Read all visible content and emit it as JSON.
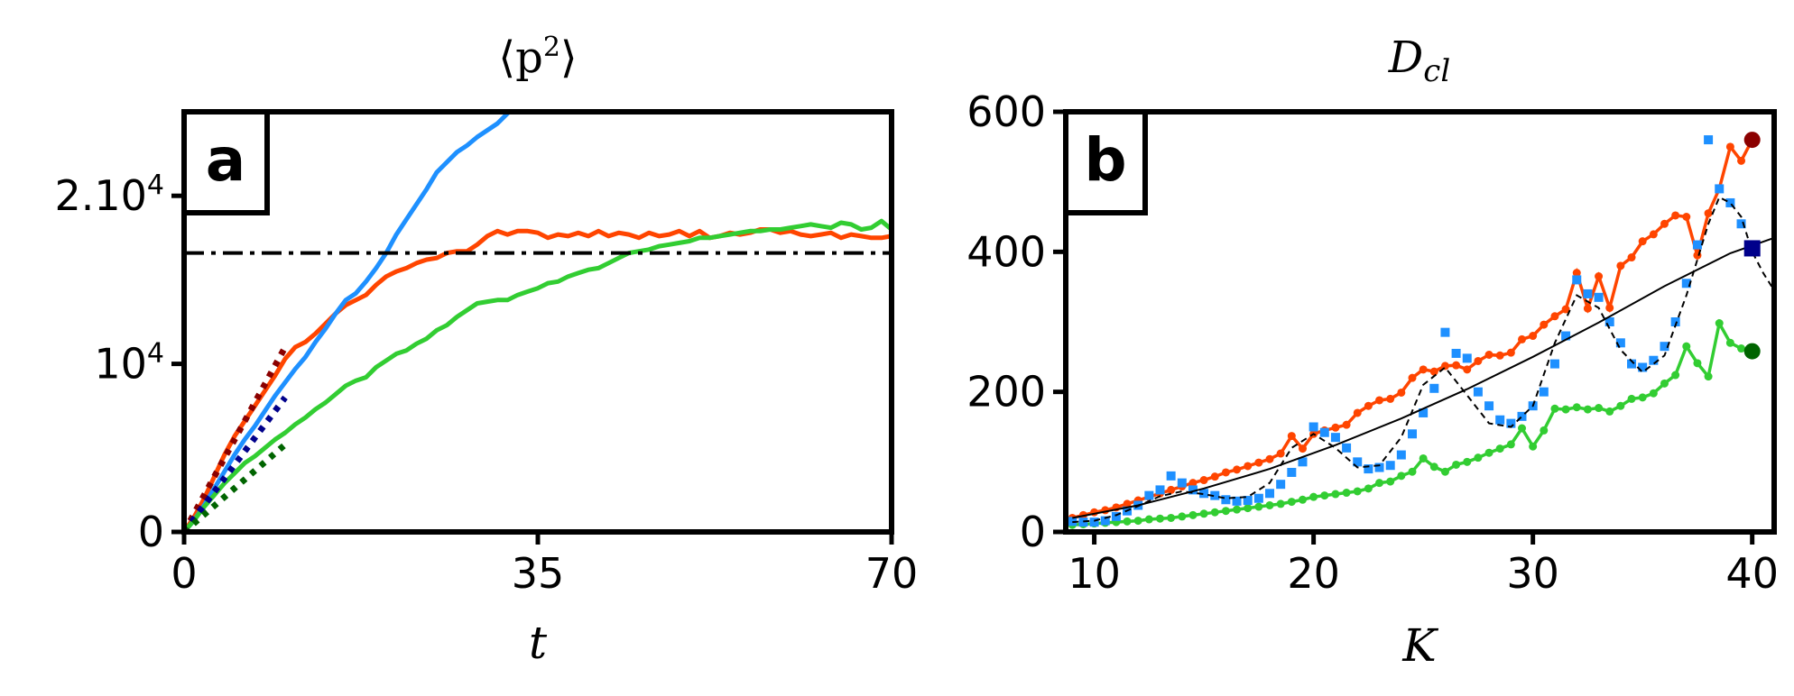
{
  "colors": {
    "red": "#ff4500",
    "blue": "#1e90ff",
    "green": "#32cd32",
    "dark_red": "#8b0000",
    "navy": "#00008b",
    "dark_green": "#006400",
    "black": "#000000"
  },
  "chart_data": [
    {
      "type": "line",
      "panel_label": "a",
      "title_main": "⟨p",
      "title_sup": "2",
      "title_end": "⟩",
      "xlabel": "t",
      "ylabel": "",
      "xlim": [
        0,
        70
      ],
      "ylim": [
        0,
        25000
      ],
      "xticks": [
        0,
        35,
        70
      ],
      "xtick_labels": [
        "0",
        "35",
        "70"
      ],
      "yticks": [
        0,
        10000,
        20000
      ],
      "ytick_labels": [
        {
          "base": "0",
          "sup": ""
        },
        {
          "base": "10",
          "sup": "4"
        },
        {
          "base": "2.10",
          "sup": "4"
        }
      ],
      "grid": false,
      "series": [
        {
          "color": "red",
          "style": "solid",
          "x": [
            0,
            1,
            2,
            3,
            4,
            5,
            6,
            7,
            8,
            9,
            10,
            11,
            12,
            13,
            14,
            15,
            16,
            17,
            18,
            19,
            20,
            21,
            22,
            23,
            24,
            25,
            26,
            27,
            28,
            29,
            30,
            31,
            32,
            33,
            34,
            35,
            36,
            37,
            38,
            39,
            40,
            41,
            42,
            43,
            44,
            45,
            46,
            47,
            48,
            49,
            50,
            51,
            52,
            53,
            54,
            55,
            56,
            57,
            58,
            59,
            60,
            61,
            62,
            63,
            64,
            65,
            66,
            67,
            68,
            69,
            70
          ],
          "y": [
            0,
            900,
            2000,
            3300,
            4600,
            5700,
            6600,
            7500,
            8400,
            9300,
            10300,
            11000,
            11300,
            11800,
            12400,
            13000,
            13500,
            13800,
            14100,
            14700,
            15200,
            15500,
            15700,
            16000,
            16200,
            16300,
            16600,
            16700,
            16700,
            17100,
            17600,
            17900,
            17700,
            17900,
            17900,
            17800,
            17500,
            17700,
            17600,
            17800,
            17600,
            17900,
            17600,
            17800,
            17700,
            17500,
            17800,
            17600,
            17700,
            17900,
            17600,
            17900,
            17500,
            17600,
            17800,
            17700,
            17800,
            18000,
            18000,
            17800,
            17900,
            17700,
            17600,
            17700,
            17800,
            17500,
            17700,
            17600,
            17500,
            17500,
            17600
          ]
        },
        {
          "color": "blue",
          "style": "solid",
          "x": [
            0,
            1,
            2,
            3,
            4,
            5,
            6,
            7,
            8,
            9,
            10,
            11,
            12,
            13,
            14,
            15,
            16,
            17,
            18,
            19,
            20,
            21,
            22,
            23,
            24,
            25,
            26,
            27,
            28,
            29,
            30,
            31,
            32,
            33
          ],
          "y": [
            0,
            700,
            1600,
            2600,
            3600,
            4600,
            5500,
            6300,
            7200,
            8100,
            8900,
            9700,
            10400,
            11300,
            12100,
            13000,
            13800,
            14200,
            14900,
            15700,
            16600,
            17700,
            18600,
            19500,
            20400,
            21400,
            22000,
            22600,
            23000,
            23500,
            23900,
            24300,
            24900,
            25600
          ]
        },
        {
          "color": "green",
          "style": "solid",
          "x": [
            0,
            1,
            2,
            3,
            4,
            5,
            6,
            7,
            8,
            9,
            10,
            11,
            12,
            13,
            14,
            15,
            16,
            17,
            18,
            19,
            20,
            21,
            22,
            23,
            24,
            25,
            26,
            27,
            28,
            29,
            30,
            31,
            32,
            33,
            34,
            35,
            36,
            37,
            38,
            39,
            40,
            41,
            42,
            43,
            44,
            45,
            46,
            47,
            48,
            49,
            50,
            51,
            52,
            53,
            54,
            55,
            56,
            57,
            58,
            59,
            60,
            61,
            62,
            63,
            64,
            65,
            66,
            67,
            68,
            69,
            70
          ],
          "y": [
            0,
            700,
            1500,
            2200,
            2900,
            3500,
            4100,
            4500,
            5000,
            5500,
            5900,
            6400,
            6800,
            7300,
            7700,
            8200,
            8700,
            9000,
            9200,
            9800,
            10200,
            10600,
            10800,
            11200,
            11500,
            12000,
            12300,
            12800,
            13200,
            13600,
            13700,
            13800,
            13800,
            14100,
            14300,
            14500,
            14800,
            14900,
            15200,
            15400,
            15600,
            15700,
            16000,
            16300,
            16600,
            16700,
            16800,
            17000,
            17100,
            17200,
            17300,
            17500,
            17500,
            17600,
            17700,
            17800,
            17900,
            17900,
            18000,
            18000,
            18100,
            18200,
            18300,
            18200,
            18100,
            18400,
            18300,
            18000,
            18100,
            18500,
            18000
          ]
        },
        {
          "color": "dark_red",
          "style": "dotted",
          "x": [
            0,
            10
          ],
          "y": [
            0,
            11000
          ]
        },
        {
          "color": "navy",
          "style": "dotted",
          "x": [
            0,
            10
          ],
          "y": [
            0,
            8000
          ]
        },
        {
          "color": "dark_green",
          "style": "dotted",
          "x": [
            0,
            10
          ],
          "y": [
            0,
            5200
          ]
        },
        {
          "color": "black",
          "style": "dashdot",
          "x": [
            0,
            70
          ],
          "y": [
            16600,
            16600
          ]
        }
      ]
    },
    {
      "type": "line",
      "panel_label": "b",
      "title_main": "D",
      "title_sub": "cl",
      "xlabel": "K",
      "ylabel": "",
      "xlim": [
        8.7,
        41
      ],
      "ylim": [
        0,
        600
      ],
      "xticks": [
        10,
        20,
        30,
        40
      ],
      "xtick_labels": [
        "10",
        "20",
        "30",
        "40"
      ],
      "yticks": [
        0,
        200,
        400,
        600
      ],
      "ytick_labels": [
        "0",
        "200",
        "400",
        "600"
      ],
      "grid": false,
      "series": [
        {
          "color": "red",
          "style": "line-dots",
          "x": [
            9,
            9.5,
            10,
            10.5,
            11,
            11.5,
            12,
            12.5,
            13,
            13.5,
            14,
            14.5,
            15,
            15.5,
            16,
            16.5,
            17,
            17.5,
            18,
            18.5,
            19,
            19.5,
            20,
            20.5,
            21,
            21.5,
            22,
            22.5,
            23,
            23.5,
            24,
            24.5,
            25,
            25.5,
            26,
            26.5,
            27,
            27.5,
            28,
            28.5,
            29,
            29.5,
            30,
            30.5,
            31,
            31.5,
            32,
            32.5,
            33,
            33.5,
            34,
            34.5,
            35,
            35.5,
            36,
            36.5,
            37,
            37.5,
            38,
            38.5,
            39,
            39.5,
            40
          ],
          "y": [
            20,
            24,
            28,
            31,
            35,
            40,
            45,
            50,
            55,
            60,
            65,
            70,
            74,
            79,
            85,
            89,
            94,
            99,
            104,
            112,
            137,
            119,
            140,
            145,
            149,
            153,
            170,
            180,
            188,
            190,
            199,
            220,
            232,
            229,
            237,
            238,
            232,
            244,
            253,
            252,
            256,
            275,
            280,
            296,
            308,
            318,
            370,
            319,
            365,
            320,
            380,
            392,
            415,
            425,
            440,
            452,
            450,
            395,
            455,
            490,
            550,
            530,
            560
          ]
        },
        {
          "color": "green",
          "style": "line-dots",
          "x": [
            9,
            9.5,
            10,
            10.5,
            11,
            11.5,
            12,
            12.5,
            13,
            13.5,
            14,
            14.5,
            15,
            15.5,
            16,
            16.5,
            17,
            17.5,
            18,
            18.5,
            19,
            19.5,
            20,
            20.5,
            21,
            21.5,
            22,
            22.5,
            23,
            23.5,
            24,
            24.5,
            25,
            25.5,
            26,
            26.5,
            27,
            27.5,
            28,
            28.5,
            29,
            29.5,
            30,
            30.5,
            31,
            31.5,
            32,
            32.5,
            33,
            33.5,
            34,
            34.5,
            35,
            35.5,
            36,
            36.5,
            37,
            37.5,
            38,
            38.5,
            39,
            39.5,
            40
          ],
          "y": [
            10,
            11,
            12,
            13,
            14,
            15,
            16,
            18,
            19,
            20,
            22,
            24,
            26,
            28,
            30,
            32,
            34,
            36,
            38,
            40,
            43,
            46,
            50,
            52,
            54,
            56,
            58,
            62,
            70,
            72,
            80,
            86,
            105,
            93,
            86,
            96,
            100,
            106,
            113,
            119,
            125,
            148,
            122,
            145,
            176,
            175,
            178,
            175,
            177,
            172,
            180,
            190,
            192,
            198,
            212,
            224,
            265,
            241,
            222,
            298,
            270,
            262,
            258
          ]
        },
        {
          "color": "blue",
          "style": "squares",
          "x": [
            9,
            9.5,
            10,
            10.5,
            11,
            11.5,
            12,
            12.5,
            13,
            13.5,
            14,
            14.5,
            15,
            15.5,
            16,
            16.5,
            17,
            17.5,
            18,
            18.5,
            19,
            19.5,
            20,
            20.5,
            21,
            21.5,
            22,
            22.5,
            23,
            23.5,
            24,
            24.5,
            25,
            25.5,
            26,
            26.5,
            27,
            27.5,
            28,
            28.5,
            29,
            29.5,
            30,
            30.5,
            31,
            31.5,
            32,
            32.5,
            33,
            33.5,
            34,
            34.5,
            35,
            35.5,
            36,
            36.5,
            37,
            37.5,
            38,
            38.5,
            39,
            39.5
          ],
          "y": [
            15,
            14,
            14,
            16,
            22,
            30,
            38,
            52,
            60,
            80,
            70,
            60,
            55,
            52,
            46,
            44,
            45,
            48,
            55,
            68,
            85,
            100,
            150,
            142,
            135,
            120,
            100,
            90,
            92,
            95,
            110,
            140,
            170,
            205,
            285,
            255,
            248,
            200,
            180,
            160,
            155,
            165,
            180,
            200,
            240,
            280,
            360,
            340,
            335,
            300,
            270,
            240,
            235,
            245,
            265,
            300,
            355,
            410,
            560,
            490,
            470,
            440
          ]
        },
        {
          "color": "black",
          "style": "dashed",
          "x": [
            9,
            10,
            11,
            12,
            13,
            14,
            15,
            16,
            17,
            18,
            19,
            20,
            21,
            22,
            23,
            24,
            25,
            26,
            27,
            28,
            29,
            30,
            31,
            32,
            33,
            34,
            35,
            36,
            37,
            38,
            38.5,
            39,
            39.5,
            40,
            40.5,
            41
          ],
          "y": [
            14,
            16,
            24,
            37,
            51,
            58,
            54,
            48,
            50,
            70,
            120,
            140,
            120,
            92,
            95,
            135,
            210,
            235,
            195,
            155,
            150,
            180,
            270,
            338,
            320,
            260,
            228,
            252,
            338,
            440,
            478,
            470,
            450,
            400,
            370,
            345
          ]
        },
        {
          "color": "black",
          "style": "thin",
          "x": [
            9,
            12,
            15,
            18,
            21,
            24,
            27,
            30,
            33,
            36,
            39,
            41
          ],
          "y": [
            20,
            38,
            62,
            90,
            124,
            162,
            204,
            250,
            299,
            351,
            398,
            420
          ]
        },
        {
          "color": "dark_red",
          "style": "marker-circle",
          "x": [
            40
          ],
          "y": [
            560
          ]
        },
        {
          "color": "navy",
          "style": "marker-square",
          "x": [
            40
          ],
          "y": [
            405
          ]
        },
        {
          "color": "dark_green",
          "style": "marker-circle",
          "x": [
            40
          ],
          "y": [
            258
          ]
        }
      ]
    }
  ]
}
